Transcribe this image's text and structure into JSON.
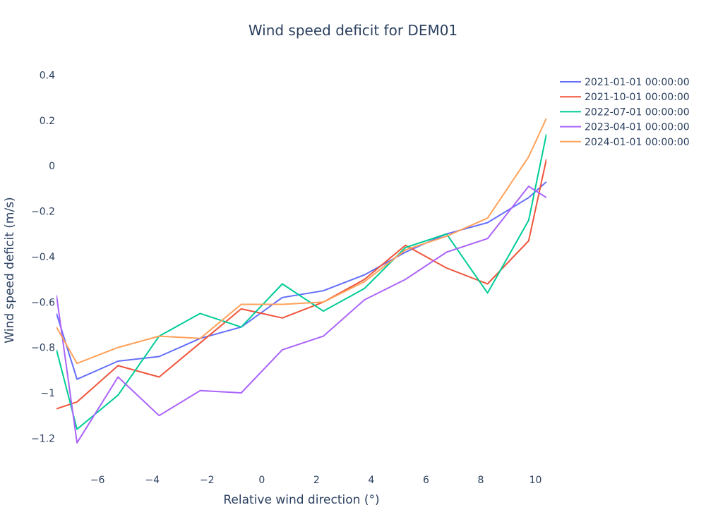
{
  "chart_data": {
    "type": "line",
    "title": "Wind speed deficit for DEM01",
    "xlabel": "Relative wind direction (°)",
    "ylabel": "Wind speed deficit (m/s)",
    "xlim": [
      -7.5,
      10.4
    ],
    "ylim": [
      -1.32,
      0.42
    ],
    "xticks": [
      -6,
      -4,
      -2,
      0,
      2,
      4,
      6,
      8,
      10
    ],
    "xtick_labels": [
      "−6",
      "−4",
      "−2",
      "0",
      "2",
      "4",
      "6",
      "8",
      "10"
    ],
    "yticks": [
      0.4,
      0.2,
      0,
      -0.2,
      -0.4,
      -0.6,
      -0.8,
      -1,
      -1.2
    ],
    "ytick_labels": [
      "0.4",
      "0.2",
      "0",
      "−0.2",
      "−0.4",
      "−0.6",
      "−0.8",
      "−1",
      "−1.2"
    ],
    "grid": false,
    "legend_position": "top-right",
    "x": [
      -7.5,
      -6.75,
      -5.25,
      -3.75,
      -2.25,
      -0.75,
      0.75,
      2.25,
      3.75,
      5.25,
      6.75,
      8.25,
      9.75,
      10.4
    ],
    "series": [
      {
        "name": "2021-01-01 00:00:00",
        "color": "#636efa",
        "values": [
          -0.65,
          -0.94,
          -0.86,
          -0.84,
          -0.76,
          -0.71,
          -0.58,
          -0.55,
          -0.48,
          -0.38,
          -0.3,
          -0.25,
          -0.14,
          -0.07
        ]
      },
      {
        "name": "2021-10-01 00:00:00",
        "color": "#ef553b",
        "values": [
          -1.07,
          -1.04,
          -0.88,
          -0.93,
          -0.78,
          -0.63,
          -0.67,
          -0.6,
          -0.5,
          -0.35,
          -0.45,
          -0.52,
          -0.33,
          0.03
        ]
      },
      {
        "name": "2022-07-01 00:00:00",
        "color": "#00cc96",
        "values": [
          -0.81,
          -1.16,
          -1.01,
          -0.75,
          -0.65,
          -0.71,
          -0.52,
          -0.64,
          -0.54,
          -0.36,
          -0.3,
          -0.56,
          -0.24,
          0.14
        ]
      },
      {
        "name": "2023-04-01 00:00:00",
        "color": "#ab63fa",
        "values": [
          -0.57,
          -1.22,
          -0.93,
          -1.1,
          -0.99,
          -1.0,
          -0.81,
          -0.75,
          -0.59,
          -0.5,
          -0.38,
          -0.32,
          -0.09,
          -0.14
        ]
      },
      {
        "name": "2024-01-01 00:00:00",
        "color": "#ffa15a",
        "values": [
          -0.71,
          -0.87,
          -0.8,
          -0.75,
          -0.76,
          -0.61,
          -0.61,
          -0.6,
          -0.51,
          -0.37,
          -0.31,
          -0.23,
          0.04,
          0.21
        ]
      }
    ]
  }
}
